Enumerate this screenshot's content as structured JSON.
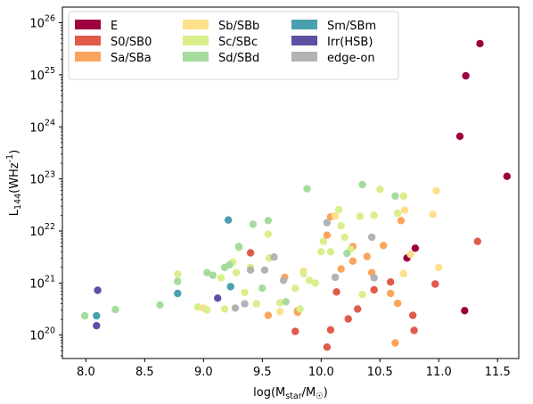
{
  "chart_data": {
    "type": "scatter",
    "xlabel": "log(M_star/M_☉)",
    "ylabel": "L_144(WHz^-1)",
    "xlim": [
      7.8,
      11.68
    ],
    "ylim_log10": [
      19.55,
      26.3
    ],
    "y_scale": "log",
    "xticks": [
      8.0,
      8.5,
      9.0,
      9.5,
      10.0,
      10.5,
      11.0,
      11.5
    ],
    "xtick_labels": [
      "8.0",
      "8.5",
      "9.0",
      "9.5",
      "10.0",
      "10.5",
      "11.0",
      "11.5"
    ],
    "yticks_log10": [
      20,
      21,
      22,
      23,
      24,
      25,
      26
    ],
    "ytick_labels": [
      "10^20",
      "10^21",
      "10^22",
      "10^23",
      "10^24",
      "10^25",
      "10^26"
    ],
    "legend_position": "top-left",
    "grid": false,
    "series": [
      {
        "name": "E",
        "color": "#9e0142",
        "points": [
          [
            11.35,
            25.6
          ],
          [
            11.23,
            24.98
          ],
          [
            11.18,
            23.82
          ],
          [
            11.58,
            23.05
          ],
          [
            10.8,
            21.67
          ],
          [
            10.73,
            21.48
          ],
          [
            11.22,
            20.47
          ]
        ]
      },
      {
        "name": "S0/SB0",
        "color": "#e15a4a",
        "points": [
          [
            9.4,
            21.58
          ],
          [
            9.78,
            20.07
          ],
          [
            10.05,
            19.77
          ],
          [
            10.08,
            20.1
          ],
          [
            10.13,
            20.83
          ],
          [
            10.23,
            20.31
          ],
          [
            10.31,
            20.5
          ],
          [
            10.45,
            20.87
          ],
          [
            10.59,
            21.02
          ],
          [
            10.78,
            20.38
          ],
          [
            10.79,
            20.09
          ],
          [
            10.97,
            20.98
          ],
          [
            11.33,
            21.8
          ]
        ]
      },
      {
        "name": "Sa/SBa",
        "color": "#fba55c",
        "points": [
          [
            9.55,
            20.38
          ],
          [
            9.69,
            21.11
          ],
          [
            9.8,
            20.44
          ],
          [
            9.8,
            20.47
          ],
          [
            10.08,
            22.27
          ],
          [
            10.05,
            21.92
          ],
          [
            10.17,
            21.27
          ],
          [
            10.27,
            21.42
          ],
          [
            10.27,
            21.7
          ],
          [
            10.39,
            21.51
          ],
          [
            10.43,
            21.2
          ],
          [
            10.53,
            21.72
          ],
          [
            10.59,
            20.8
          ],
          [
            10.63,
            19.85
          ],
          [
            10.65,
            20.61
          ],
          [
            10.68,
            22.2
          ]
        ]
      },
      {
        "name": "Sb/SBb",
        "color": "#fee08b",
        "points": [
          [
            9.0,
            20.52
          ],
          [
            9.65,
            20.45
          ],
          [
            9.85,
            21.23
          ],
          [
            10.12,
            22.29
          ],
          [
            10.7,
            21.18
          ],
          [
            10.71,
            22.4
          ],
          [
            10.76,
            21.55
          ],
          [
            10.95,
            22.32
          ],
          [
            10.98,
            22.77
          ],
          [
            11.0,
            21.3
          ]
        ]
      },
      {
        "name": "Sc/SBc",
        "color": "#d9ef8b",
        "points": [
          [
            8.78,
            21.17
          ],
          [
            8.95,
            20.54
          ],
          [
            9.03,
            20.48
          ],
          [
            9.15,
            21.1
          ],
          [
            9.18,
            20.5
          ],
          [
            9.25,
            21.4
          ],
          [
            9.28,
            21.2
          ],
          [
            9.3,
            21.68
          ],
          [
            9.35,
            20.82
          ],
          [
            9.4,
            21.3
          ],
          [
            9.45,
            20.6
          ],
          [
            9.55,
            21.94
          ],
          [
            9.56,
            21.48
          ],
          [
            9.65,
            20.62
          ],
          [
            9.78,
            20.9
          ],
          [
            9.82,
            20.5
          ],
          [
            9.85,
            21.18
          ],
          [
            9.9,
            21.05
          ],
          [
            9.95,
            21.0
          ],
          [
            10.0,
            21.6
          ],
          [
            10.02,
            21.8
          ],
          [
            10.08,
            21.6
          ],
          [
            10.15,
            22.41
          ],
          [
            10.17,
            22.1
          ],
          [
            10.2,
            21.88
          ],
          [
            10.25,
            21.65
          ],
          [
            10.33,
            22.28
          ],
          [
            10.35,
            20.78
          ],
          [
            10.45,
            22.3
          ],
          [
            10.5,
            22.8
          ],
          [
            10.65,
            22.34
          ],
          [
            10.7,
            22.67
          ]
        ]
      },
      {
        "name": "Sd/SBd",
        "color": "#a6db9f",
        "points": [
          [
            7.99,
            20.37
          ],
          [
            8.25,
            20.49
          ],
          [
            8.63,
            20.58
          ],
          [
            8.78,
            21.03
          ],
          [
            9.03,
            21.2
          ],
          [
            9.08,
            21.15
          ],
          [
            9.18,
            21.3
          ],
          [
            9.22,
            21.35
          ],
          [
            9.3,
            21.7
          ],
          [
            9.42,
            22.13
          ],
          [
            9.55,
            22.2
          ],
          [
            9.5,
            20.9
          ],
          [
            9.7,
            20.64
          ],
          [
            9.88,
            22.81
          ],
          [
            10.22,
            21.57
          ],
          [
            10.35,
            22.89
          ],
          [
            10.63,
            22.67
          ]
        ]
      },
      {
        "name": "Sm/SBm",
        "color": "#4aa0b0",
        "points": [
          [
            8.09,
            20.37
          ],
          [
            8.78,
            20.8
          ],
          [
            9.21,
            22.21
          ],
          [
            9.23,
            20.93
          ]
        ]
      },
      {
        "name": "Irr(HSB)",
        "color": "#5e4fa2",
        "points": [
          [
            8.09,
            20.18
          ],
          [
            8.1,
            20.86
          ],
          [
            9.12,
            20.71
          ]
        ]
      },
      {
        "name": "edge-on",
        "color": "#b3b3b3",
        "points": [
          [
            9.27,
            20.52
          ],
          [
            9.35,
            20.6
          ],
          [
            9.4,
            21.25
          ],
          [
            9.52,
            21.25
          ],
          [
            9.6,
            21.5
          ],
          [
            9.68,
            21.05
          ],
          [
            10.05,
            22.16
          ],
          [
            10.12,
            21.11
          ],
          [
            10.43,
            21.88
          ],
          [
            10.45,
            21.1
          ]
        ]
      }
    ]
  }
}
